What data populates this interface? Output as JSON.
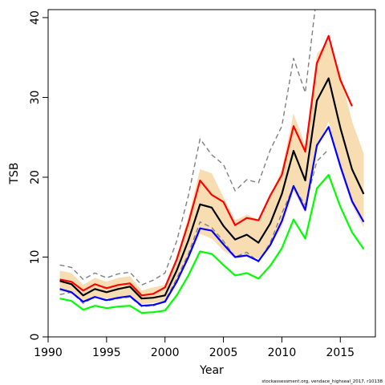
{
  "chart_data": {
    "type": "line",
    "xlabel": "Year",
    "ylabel": "TSB",
    "xlim": [
      1990,
      2018
    ],
    "ylim": [
      0,
      41
    ],
    "xticks": [
      1990,
      1995,
      2000,
      2005,
      2010,
      2015
    ],
    "yticks": [
      0,
      10,
      20,
      30,
      40
    ],
    "footnote": "stockassessment.org, vendace_highseal_2017, r10138",
    "colors": {
      "band": "#f8ddb2",
      "red": "#ff0000",
      "black": "#000000",
      "blue": "#0000ff",
      "green": "#00ff00",
      "dashed": "#808080"
    },
    "x": [
      1991,
      1992,
      1993,
      1994,
      1995,
      1996,
      1997,
      1998,
      1999,
      2000,
      2001,
      2002,
      2003,
      2004,
      2005,
      2006,
      2007,
      2008,
      2009,
      2010,
      2011,
      2012,
      2013,
      2014,
      2015,
      2016,
      2017
    ],
    "band": {
      "upper": [
        8.3,
        8.0,
        6.5,
        7.4,
        6.9,
        7.4,
        7.6,
        5.8,
        6.2,
        6.5,
        10.0,
        15.0,
        21.0,
        20.5,
        17.5,
        14.6,
        15.3,
        14.7,
        17.6,
        21.0,
        28.0,
        24.0,
        35.5,
        37.0,
        33.0,
        27.0,
        23.0
      ],
      "lower": [
        5.7,
        5.4,
        4.6,
        5.1,
        4.8,
        5.0,
        5.1,
        4.1,
        4.3,
        4.4,
        6.7,
        9.7,
        12.9,
        12.3,
        10.8,
        9.9,
        10.2,
        9.8,
        11.3,
        13.8,
        18.3,
        15.5,
        23.5,
        27.0,
        20.8,
        16.5,
        13.7
      ]
    },
    "series": [
      {
        "values": [
          7.2,
          6.9,
          5.8,
          6.6,
          6.1,
          6.5,
          6.7,
          5.2,
          5.4,
          6.2,
          9.7,
          14.3,
          19.6,
          17.8,
          16.9,
          14.0,
          14.9,
          14.6,
          17.7,
          20.3,
          26.4,
          23.2,
          34.3,
          37.7,
          32.2,
          28.9,
          null
        ]
      },
      {
        "values": [
          7.0,
          6.6,
          5.2,
          6.0,
          5.6,
          6.0,
          6.3,
          4.8,
          4.9,
          5.2,
          8.3,
          12.1,
          16.6,
          16.2,
          13.9,
          12.2,
          12.8,
          11.8,
          14.2,
          17.9,
          23.3,
          19.6,
          29.6,
          32.4,
          26.2,
          21.0,
          17.9
        ]
      },
      {
        "values": [
          6.0,
          5.6,
          4.4,
          5.0,
          4.6,
          4.9,
          5.1,
          3.9,
          4.0,
          4.4,
          6.9,
          10.0,
          13.6,
          13.3,
          11.6,
          10.0,
          10.2,
          9.5,
          11.5,
          14.5,
          18.9,
          15.9,
          24.0,
          26.3,
          21.4,
          17.0,
          14.4
        ]
      },
      {
        "values": [
          4.8,
          4.5,
          3.4,
          3.9,
          3.6,
          3.8,
          3.9,
          3.0,
          3.1,
          3.3,
          5.2,
          7.7,
          10.7,
          10.4,
          9.0,
          7.7,
          8.0,
          7.3,
          8.9,
          11.1,
          14.7,
          12.3,
          18.6,
          20.3,
          16.3,
          13.1,
          11.0
        ]
      },
      {
        "values": [
          9.0,
          8.7,
          7.2,
          8.0,
          7.4,
          7.9,
          8.1,
          6.5,
          7.1,
          8.0,
          12.0,
          17.7,
          24.8,
          22.8,
          21.6,
          18.3,
          19.7,
          19.3,
          23.4,
          26.4,
          34.9,
          30.6,
          43.0,
          null,
          null,
          null,
          null
        ]
      },
      {
        "values": [
          5.3,
          5.6,
          4.2,
          5.0,
          4.5,
          4.8,
          5.0,
          3.8,
          3.9,
          4.5,
          7.3,
          10.4,
          14.4,
          13.7,
          12.0,
          10.0,
          10.6,
          9.4,
          11.8,
          15.5,
          18.8,
          16.5,
          22.0,
          23.5,
          null,
          null,
          null
        ]
      }
    ]
  }
}
